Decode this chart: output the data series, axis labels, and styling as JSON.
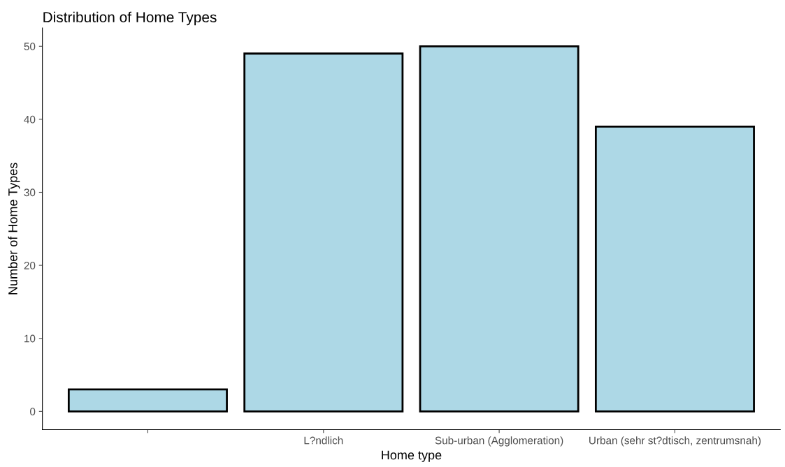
{
  "chart_data": {
    "type": "bar",
    "title": "Distribution of Home Types",
    "xlabel": "Home type",
    "ylabel": "Number of Home Types",
    "categories": [
      null,
      "L?ndlich",
      "Sub-urban (Agglomeration)",
      "Urban (sehr st?dtisch, zentrumsnah)"
    ],
    "values": [
      3,
      49,
      50,
      39
    ],
    "color": "#add8e6",
    "ylim": [
      -2.5,
      52.5
    ],
    "yticks": [
      0,
      10,
      20,
      30,
      40,
      50
    ],
    "grid": false,
    "legend": false
  }
}
